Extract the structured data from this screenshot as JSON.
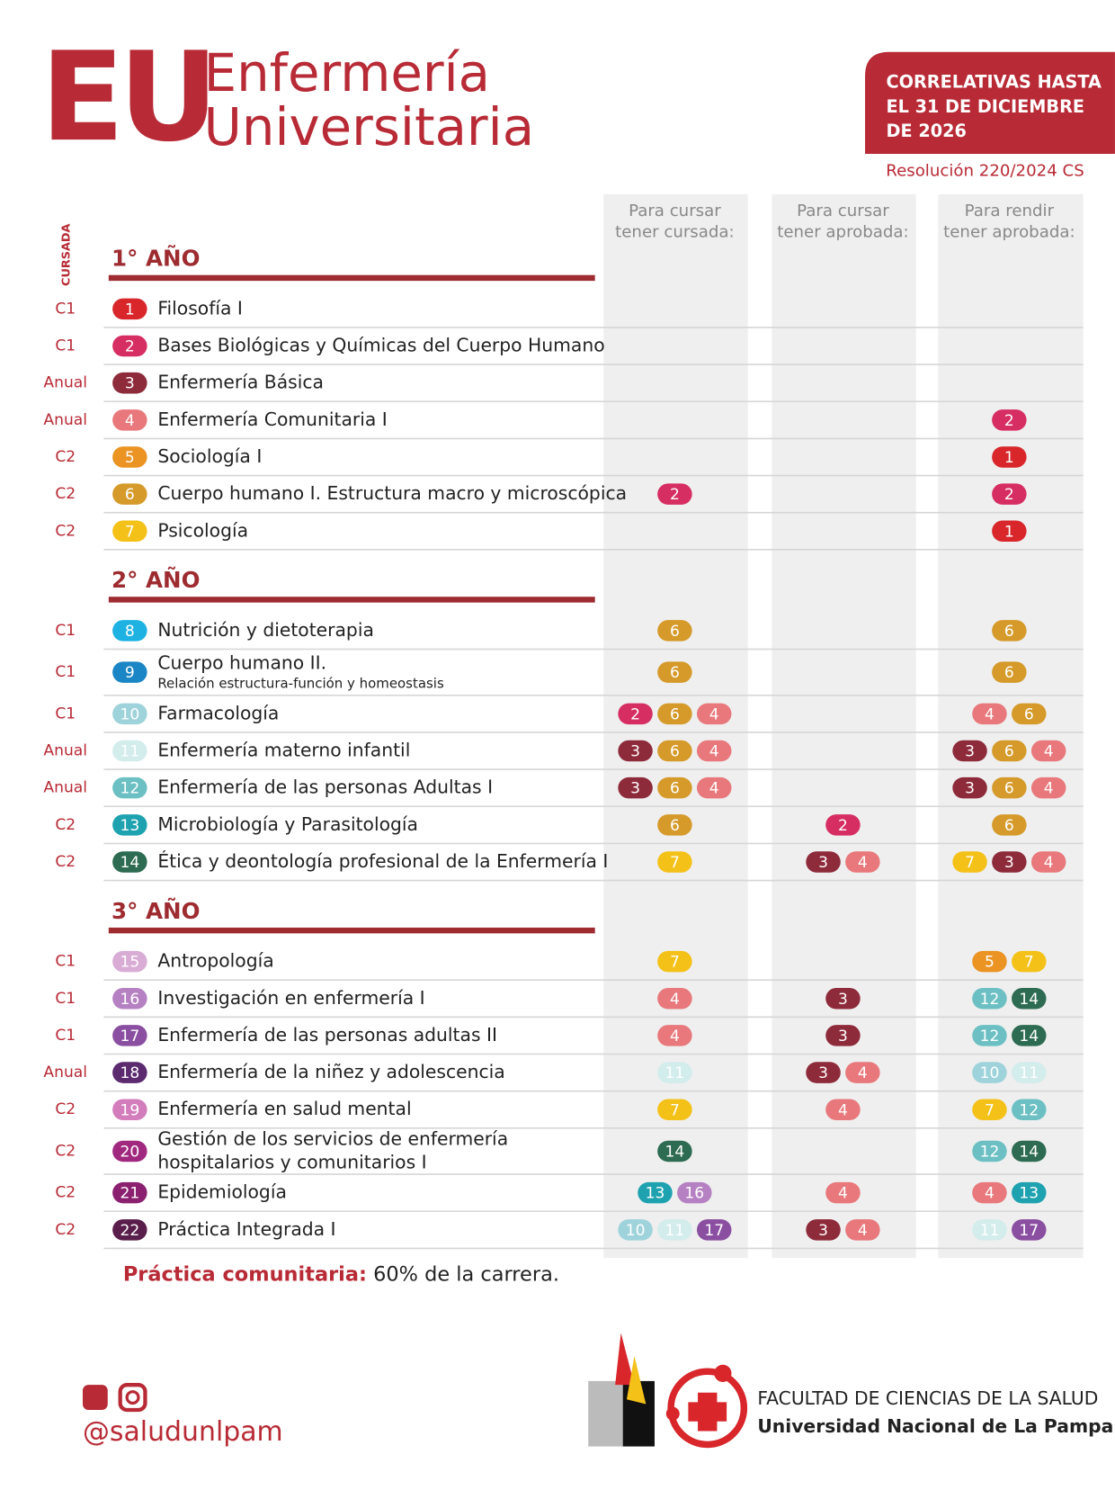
{
  "header": {
    "logo": "EU",
    "title_line1": "Enfermería",
    "title_line2": "Universitaria",
    "badge_lines": [
      "CORRELATIVAS HASTA",
      "EL 31 DE DICIEMBRE",
      "DE 2026"
    ],
    "resolution": "Resolución 220/2024 CS"
  },
  "columns": [
    [
      "Para cursar",
      "tener cursada:"
    ],
    [
      "Para cursar",
      "tener aprobada:"
    ],
    [
      "Para rendir",
      "tener aprobada:"
    ]
  ],
  "cursada_label": "CURSADA",
  "colors": {
    "1": "#d8262b",
    "2": "#d62e63",
    "3": "#8e2b3b",
    "4": "#e8787b",
    "5": "#eb9323",
    "6": "#d59a2a",
    "7": "#f4c118",
    "8": "#1eb2e3",
    "9": "#1b86c5",
    "10": "#9fd3db",
    "11": "#d3ecec",
    "12": "#6cc0c3",
    "13": "#1ea2b0",
    "14": "#2d6b52",
    "15": "#d9acd6",
    "16": "#b681c2",
    "17": "#8a4fa0",
    "18": "#5b2a6f",
    "19": "#d37dbc",
    "20": "#a1287f",
    "21": "#8b2070",
    "22": "#5a1e4c"
  },
  "years": [
    {
      "title": "1° AÑO",
      "subjects": [
        {
          "cursada": "C1",
          "number": 1,
          "name": [
            "Filosofía I"
          ],
          "req": [
            [],
            [],
            []
          ]
        },
        {
          "cursada": "C1",
          "number": 2,
          "name": [
            "Bases Biológicas y Químicas del Cuerpo Humano"
          ],
          "req": [
            [],
            [],
            []
          ]
        },
        {
          "cursada": "Anual",
          "number": 3,
          "name": [
            "Enfermería Básica"
          ],
          "req": [
            [],
            [],
            []
          ]
        },
        {
          "cursada": "Anual",
          "number": 4,
          "name": [
            "Enfermería Comunitaria I"
          ],
          "req": [
            [],
            [],
            [
              2
            ]
          ]
        },
        {
          "cursada": "C2",
          "number": 5,
          "name": [
            "Sociología I"
          ],
          "req": [
            [],
            [],
            [
              1
            ]
          ]
        },
        {
          "cursada": "C2",
          "number": 6,
          "name": [
            "Cuerpo humano I. Estructura macro y microscópica"
          ],
          "req": [
            [
              2
            ],
            [],
            [
              2
            ]
          ]
        },
        {
          "cursada": "C2",
          "number": 7,
          "name": [
            "Psicología"
          ],
          "req": [
            [],
            [],
            [
              1
            ]
          ]
        }
      ]
    },
    {
      "title": "2° AÑO",
      "subjects": [
        {
          "cursada": "C1",
          "number": 8,
          "name": [
            "Nutrición y dietoterapia"
          ],
          "req": [
            [
              6
            ],
            [],
            [
              6
            ]
          ]
        },
        {
          "cursada": "C1",
          "number": 9,
          "name": [
            "Cuerpo humano II."
          ],
          "subtitle": "Relación estructura-función y homeostasis",
          "req": [
            [
              6
            ],
            [],
            [
              6
            ]
          ]
        },
        {
          "cursada": "C1",
          "number": 10,
          "name": [
            "Farmacología"
          ],
          "req": [
            [
              2,
              6,
              4
            ],
            [],
            [
              4,
              6
            ]
          ]
        },
        {
          "cursada": "Anual",
          "number": 11,
          "name": [
            "Enfermería materno infantil"
          ],
          "req": [
            [
              3,
              6,
              4
            ],
            [],
            [
              3,
              6,
              4
            ]
          ]
        },
        {
          "cursada": "Anual",
          "number": 12,
          "name": [
            "Enfermería de las personas Adultas I"
          ],
          "req": [
            [
              3,
              6,
              4
            ],
            [],
            [
              3,
              6,
              4
            ]
          ]
        },
        {
          "cursada": "C2",
          "number": 13,
          "name": [
            "Microbiología y Parasitología"
          ],
          "req": [
            [
              6
            ],
            [
              2
            ],
            [
              6
            ]
          ]
        },
        {
          "cursada": "C2",
          "number": 14,
          "name": [
            "Ética y deontología profesional de la Enfermería I"
          ],
          "req": [
            [
              7
            ],
            [
              3,
              4
            ],
            [
              7,
              3,
              4
            ]
          ]
        }
      ]
    },
    {
      "title": "3° AÑO",
      "subjects": [
        {
          "cursada": "C1",
          "number": 15,
          "name": [
            "Antropología"
          ],
          "req": [
            [
              7
            ],
            [],
            [
              5,
              7
            ]
          ]
        },
        {
          "cursada": "C1",
          "number": 16,
          "name": [
            "Investigación en enfermería I"
          ],
          "req": [
            [
              4
            ],
            [
              3
            ],
            [
              12,
              14
            ]
          ]
        },
        {
          "cursada": "C1",
          "number": 17,
          "name": [
            "Enfermería de las personas adultas II"
          ],
          "req": [
            [
              4
            ],
            [
              3
            ],
            [
              12,
              14
            ]
          ]
        },
        {
          "cursada": "Anual",
          "number": 18,
          "name": [
            "Enfermería de la niñez y adolescencia"
          ],
          "req": [
            [
              11
            ],
            [
              3,
              4
            ],
            [
              10,
              11
            ]
          ]
        },
        {
          "cursada": "C2",
          "number": 19,
          "name": [
            "Enfermería en salud mental"
          ],
          "req": [
            [
              7
            ],
            [
              4
            ],
            [
              7,
              12
            ]
          ]
        },
        {
          "cursada": "C2",
          "number": 20,
          "name": [
            "Gestión de los servicios de enfermería",
            "hospitalarios y comunitarios I"
          ],
          "req": [
            [
              14
            ],
            [],
            [
              12,
              14
            ]
          ]
        },
        {
          "cursada": "C2",
          "number": 21,
          "name": [
            "Epidemiología"
          ],
          "req": [
            [
              13,
              16
            ],
            [
              4
            ],
            [
              4,
              13
            ]
          ]
        },
        {
          "cursada": "C2",
          "number": 22,
          "name": [
            "Práctica Integrada I"
          ],
          "req": [
            [
              10,
              11,
              17
            ],
            [
              3,
              4
            ],
            [
              11,
              17
            ]
          ]
        }
      ]
    }
  ],
  "note": {
    "label": "Práctica comunitaria:",
    "text": " 60% de la carrera."
  },
  "footer": {
    "handle": "@saludunlpam",
    "faculty": "FACULTAD DE CIENCIAS DE LA SALUD",
    "university": "Universidad Nacional de La Pampa"
  }
}
